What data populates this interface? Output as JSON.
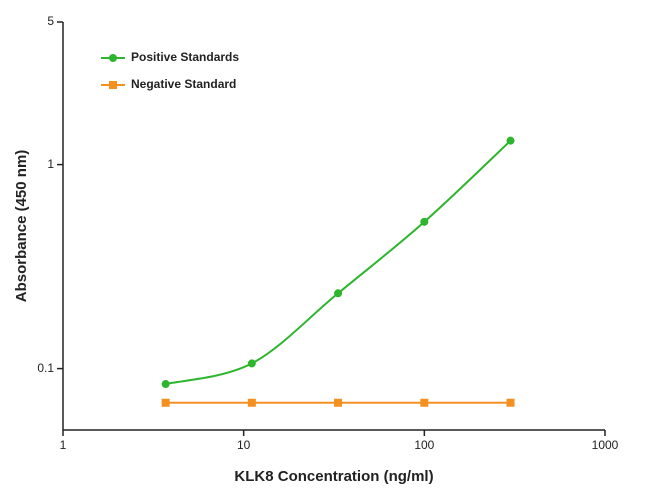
{
  "chart_data": {
    "type": "scatter",
    "x_label": "KLK8 Concentration (ng/ml)",
    "y_label": "Absorbance (450 nm)",
    "xscale": "log",
    "yscale": "log",
    "xlim": [
      1,
      1000
    ],
    "xticks": [
      1,
      10,
      100,
      1000
    ],
    "ylim": [
      0.05,
      5
    ],
    "yticks": [
      0.1,
      1,
      5
    ],
    "legend": "upper left",
    "series": [
      {
        "name": "Positive Standards",
        "color": "#2db52d",
        "marker": "circle",
        "curve": "smooth",
        "x": [
          3.7,
          11.1,
          33.3,
          100,
          300
        ],
        "values": [
          0.084,
          0.106,
          0.234,
          0.524,
          1.31
        ]
      },
      {
        "name": "Negative Standard",
        "color": "#f39020",
        "marker": "square",
        "curve": "straight",
        "x": [
          3.7,
          11.1,
          33.3,
          100,
          300
        ],
        "values": [
          0.068,
          0.068,
          0.068,
          0.068,
          0.068
        ]
      }
    ]
  }
}
